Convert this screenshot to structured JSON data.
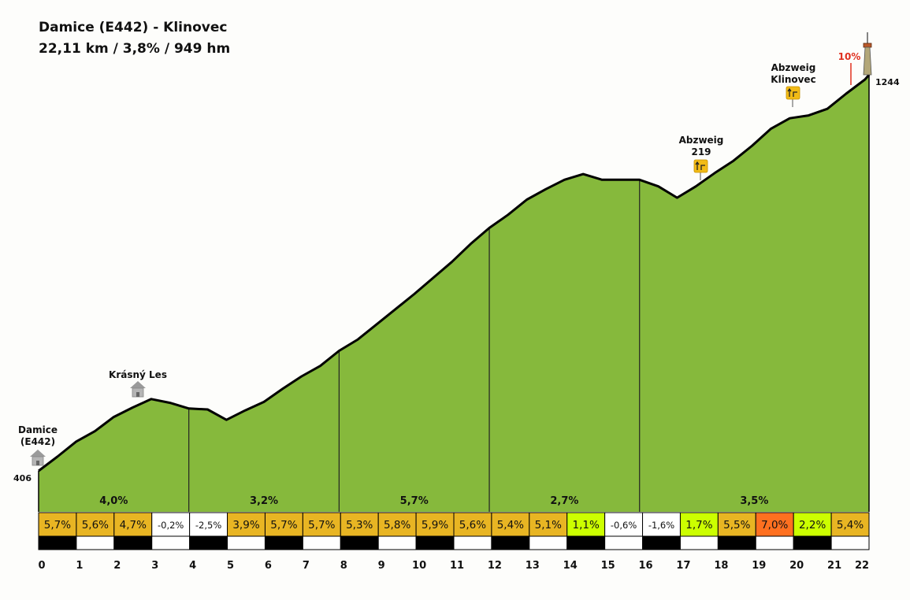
{
  "title": "Damice (E442) - Klinovec",
  "subtitle": "22,11 km / 3,8% / 949 hm",
  "chart_data": {
    "type": "area",
    "xlim": [
      0,
      22.11
    ],
    "ylim": [
      406,
      1244
    ],
    "start_elevation": "406",
    "end_elevation": "1244",
    "profile": [
      [
        0,
        406
      ],
      [
        0.5,
        436
      ],
      [
        1,
        468
      ],
      [
        1.5,
        490
      ],
      [
        2,
        520
      ],
      [
        2.5,
        540
      ],
      [
        3,
        558
      ],
      [
        3.5,
        550
      ],
      [
        4,
        538
      ],
      [
        4.5,
        536
      ],
      [
        5,
        514
      ],
      [
        5.5,
        534
      ],
      [
        6,
        552
      ],
      [
        6.5,
        580
      ],
      [
        7,
        606
      ],
      [
        7.5,
        628
      ],
      [
        8,
        660
      ],
      [
        8.5,
        684
      ],
      [
        9,
        716
      ],
      [
        9.5,
        748
      ],
      [
        10,
        780
      ],
      [
        10.5,
        814
      ],
      [
        11,
        848
      ],
      [
        11.5,
        886
      ],
      [
        12,
        920
      ],
      [
        12.5,
        948
      ],
      [
        13,
        980
      ],
      [
        13.5,
        1002
      ],
      [
        14,
        1022
      ],
      [
        14.5,
        1034
      ],
      [
        15,
        1022
      ],
      [
        15.5,
        1022
      ],
      [
        16,
        1022
      ],
      [
        16.5,
        1008
      ],
      [
        17,
        984
      ],
      [
        17.5,
        1008
      ],
      [
        18,
        1036
      ],
      [
        18.5,
        1062
      ],
      [
        19,
        1094
      ],
      [
        19.5,
        1130
      ],
      [
        20,
        1152
      ],
      [
        20.5,
        1158
      ],
      [
        21,
        1172
      ],
      [
        21.5,
        1204
      ],
      [
        22,
        1234
      ],
      [
        22.11,
        1244
      ]
    ],
    "section_boundaries": [
      4,
      8,
      12,
      16
    ],
    "sections": [
      {
        "label": "4,0%",
        "from": 0,
        "to": 4
      },
      {
        "label": "3,2%",
        "from": 4,
        "to": 8
      },
      {
        "label": "5,7%",
        "from": 8,
        "to": 12
      },
      {
        "label": "2,7%",
        "from": 12,
        "to": 16
      },
      {
        "label": "3,5%",
        "from": 16,
        "to": 22.11
      }
    ],
    "km_gradients": [
      {
        "label": "5,7%",
        "value": 5.7,
        "color": "#e8b523"
      },
      {
        "label": "5,6%",
        "value": 5.6,
        "color": "#e8b523"
      },
      {
        "label": "4,7%",
        "value": 4.7,
        "color": "#e8b523"
      },
      {
        "label": "-0,2%",
        "value": -0.2,
        "color": "#ffffff"
      },
      {
        "label": "-2,5%",
        "value": -2.5,
        "color": "#ffffff"
      },
      {
        "label": "3,9%",
        "value": 3.9,
        "color": "#e8b523"
      },
      {
        "label": "5,7%",
        "value": 5.7,
        "color": "#e8b523"
      },
      {
        "label": "5,7%",
        "value": 5.7,
        "color": "#e8b523"
      },
      {
        "label": "5,3%",
        "value": 5.3,
        "color": "#e8b523"
      },
      {
        "label": "5,8%",
        "value": 5.8,
        "color": "#e8b523"
      },
      {
        "label": "5,9%",
        "value": 5.9,
        "color": "#e8b523"
      },
      {
        "label": "5,6%",
        "value": 5.6,
        "color": "#e8b523"
      },
      {
        "label": "5,4%",
        "value": 5.4,
        "color": "#e8b523"
      },
      {
        "label": "5,1%",
        "value": 5.1,
        "color": "#e8b523"
      },
      {
        "label": "1,1%",
        "value": 1.1,
        "color": "#ccff00"
      },
      {
        "label": "-0,6%",
        "value": -0.6,
        "color": "#ffffff"
      },
      {
        "label": "-1,6%",
        "value": -1.6,
        "color": "#ffffff"
      },
      {
        "label": "1,7%",
        "value": 1.7,
        "color": "#ccff00"
      },
      {
        "label": "5,5%",
        "value": 5.5,
        "color": "#e8b523"
      },
      {
        "label": "7,0%",
        "value": 7.0,
        "color": "#ff7020"
      },
      {
        "label": "2,2%",
        "value": 2.2,
        "color": "#ccff00"
      },
      {
        "label": "5,4%",
        "value": 5.4,
        "color": "#e8b523"
      }
    ],
    "x_ticks": [
      "0",
      "1",
      "2",
      "3",
      "4",
      "5",
      "6",
      "7",
      "8",
      "9",
      "10",
      "11",
      "12",
      "13",
      "14",
      "15",
      "16",
      "17",
      "18",
      "19",
      "20",
      "21",
      "22"
    ],
    "places": [
      {
        "name": [
          "Damice",
          "(E442)"
        ],
        "km": 0,
        "icon": "house-icon"
      },
      {
        "name": [
          "Krásný Les"
        ],
        "km": 2.6,
        "icon": "house-icon"
      },
      {
        "name": [
          "Abzweig",
          "219"
        ],
        "km": 17.4,
        "icon": "junction-sign-icon"
      },
      {
        "name": [
          "Abzweig",
          "Klinovec"
        ],
        "km": 19.8,
        "icon": "junction-sign-icon"
      }
    ],
    "max_gradient": {
      "label": "10%",
      "km": 21.5
    },
    "summit_icon": "tower-icon",
    "colors": {
      "area": "#86b93c",
      "outline": "#000000",
      "max_gradient": "#e03020"
    }
  }
}
